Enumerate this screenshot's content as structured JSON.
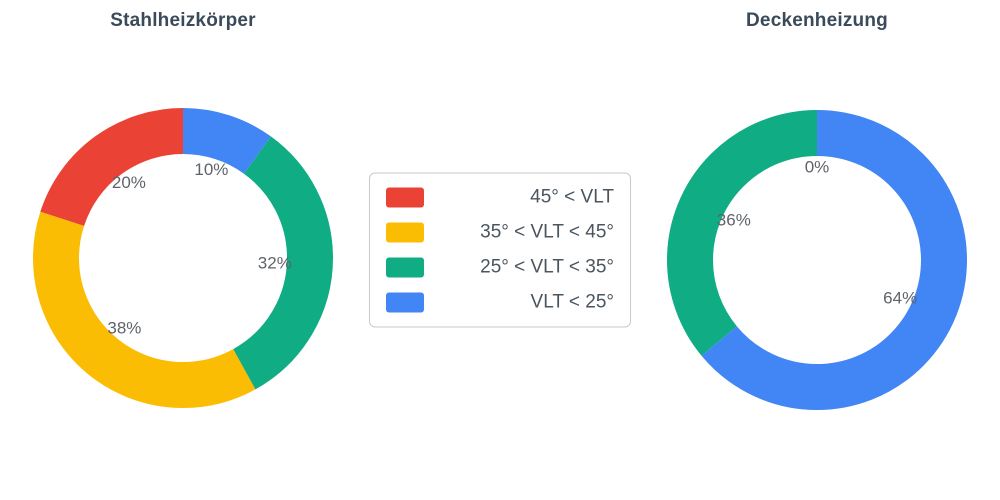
{
  "figure": {
    "background": "#ffffff"
  },
  "text_colors": {
    "title": "#3b4a5a",
    "slice_label": "#5f6368",
    "legend_label": "#4a5560"
  },
  "legend": {
    "position": "center-between-charts",
    "items": [
      {
        "label": "45° < VLT",
        "color": "#ea4335"
      },
      {
        "label": "35° < VLT < 45°",
        "color": "#fbbc04"
      },
      {
        "label": "25° < VLT < 35°",
        "color": "#10ac84"
      },
      {
        "label": "VLT < 25°",
        "color": "#4285f4"
      }
    ]
  },
  "chart_data": [
    {
      "type": "pie",
      "subtype": "donut",
      "title": "Stahlheizkörper",
      "hole": 0.69,
      "direction": "counterclockwise",
      "start_angle": "top",
      "categories": [
        "45° < VLT",
        "35° < VLT < 45°",
        "25° < VLT < 35°",
        "VLT < 25°"
      ],
      "values": [
        20,
        38,
        32,
        10
      ],
      "slice_labels": [
        "20%",
        "38%",
        "32%",
        "10%"
      ],
      "colors": [
        "#ea4335",
        "#fbbc04",
        "#10ac84",
        "#4285f4"
      ]
    },
    {
      "type": "pie",
      "subtype": "donut",
      "title": "Deckenheizung",
      "hole": 0.69,
      "direction": "counterclockwise",
      "start_angle": "top",
      "categories": [
        "45° < VLT",
        "35° < VLT < 45°",
        "25° < VLT < 35°",
        "VLT < 25°"
      ],
      "values": [
        0,
        0,
        36,
        64
      ],
      "slice_labels": [
        "0%",
        "",
        "36%",
        "64%"
      ],
      "colors": [
        "#ea4335",
        "#fbbc04",
        "#10ac84",
        "#4285f4"
      ]
    }
  ]
}
